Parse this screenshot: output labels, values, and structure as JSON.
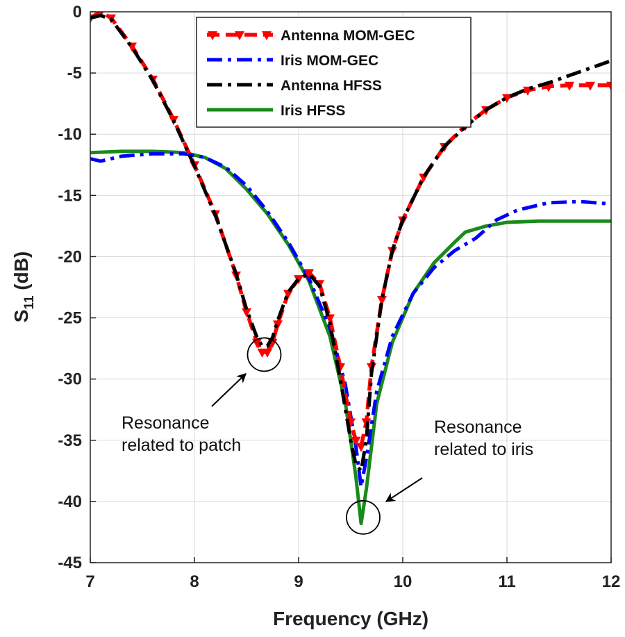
{
  "chart_data": {
    "type": "line",
    "title": "",
    "xlabel": "Frequency (GHz)",
    "ylabel_main": "S",
    "ylabel_sub": "11",
    "ylabel_unit": " (dB)",
    "xlim": [
      7,
      12
    ],
    "ylim": [
      -45,
      0
    ],
    "xticks": [
      "7",
      "8",
      "9",
      "10",
      "11",
      "12"
    ],
    "yticks": [
      "0",
      "-5",
      "-10",
      "-15",
      "-20",
      "-25",
      "-30",
      "-35",
      "-40",
      "-45"
    ],
    "grid": true,
    "legend_position": "top-center",
    "series": [
      {
        "name": "Antenna MOM-GEC",
        "color": "#ff0000",
        "style": "dashed-triangle-markers",
        "x": [
          7.0,
          7.1,
          7.2,
          7.4,
          7.6,
          7.8,
          8.0,
          8.2,
          8.4,
          8.5,
          8.6,
          8.65,
          8.7,
          8.75,
          8.8,
          8.9,
          9.0,
          9.1,
          9.2,
          9.3,
          9.4,
          9.5,
          9.55,
          9.6,
          9.65,
          9.7,
          9.8,
          9.9,
          10.0,
          10.2,
          10.4,
          10.6,
          10.8,
          11.0,
          11.2,
          11.4,
          11.6,
          11.8,
          12.0
        ],
        "y": [
          -0.5,
          0.0,
          -0.5,
          -2.8,
          -5.5,
          -8.8,
          -12.5,
          -16.5,
          -21.5,
          -24.5,
          -27.0,
          -27.8,
          -27.8,
          -27.0,
          -25.5,
          -23.0,
          -21.8,
          -21.3,
          -22.2,
          -25.0,
          -29.0,
          -33.5,
          -35.0,
          -35.5,
          -33.5,
          -29.0,
          -23.5,
          -19.5,
          -17.0,
          -13.5,
          -11.0,
          -9.3,
          -8.0,
          -7.0,
          -6.4,
          -6.1,
          -6.0,
          -6.0,
          -6.0
        ]
      },
      {
        "name": "Iris MOM-GEC",
        "color": "#0000ff",
        "style": "dash-dot",
        "x": [
          7.0,
          7.1,
          7.3,
          7.6,
          7.9,
          8.1,
          8.3,
          8.5,
          8.7,
          8.9,
          9.1,
          9.3,
          9.45,
          9.55,
          9.6,
          9.65,
          9.75,
          9.9,
          10.1,
          10.3,
          10.5,
          10.7,
          10.9,
          11.1,
          11.4,
          11.7,
          12.0
        ],
        "y": [
          -12.0,
          -12.2,
          -11.8,
          -11.6,
          -11.6,
          -11.9,
          -12.7,
          -14.2,
          -16.3,
          -18.8,
          -21.8,
          -25.8,
          -30.5,
          -35.5,
          -38.8,
          -36.5,
          -31.0,
          -26.5,
          -23.0,
          -20.9,
          -19.5,
          -18.5,
          -17.0,
          -16.2,
          -15.6,
          -15.5,
          -15.7
        ]
      },
      {
        "name": "Antenna HFSS",
        "color": "#000000",
        "style": "dash-dot",
        "x": [
          7.0,
          7.1,
          7.2,
          7.4,
          7.6,
          7.8,
          8.0,
          8.2,
          8.4,
          8.5,
          8.6,
          8.65,
          8.7,
          8.75,
          8.8,
          8.9,
          9.0,
          9.1,
          9.2,
          9.3,
          9.4,
          9.5,
          9.55,
          9.6,
          9.65,
          9.7,
          9.8,
          9.9,
          10.0,
          10.2,
          10.4,
          10.6,
          10.8,
          11.0,
          11.2,
          11.4,
          11.6,
          11.8,
          12.0
        ],
        "y": [
          -0.5,
          -0.3,
          -0.6,
          -2.9,
          -5.6,
          -8.9,
          -12.6,
          -16.6,
          -21.4,
          -24.3,
          -26.6,
          -27.3,
          -27.3,
          -26.6,
          -25.2,
          -22.9,
          -21.8,
          -21.4,
          -22.4,
          -25.4,
          -30.0,
          -35.0,
          -37.0,
          -37.5,
          -35.0,
          -29.5,
          -23.5,
          -19.5,
          -17.0,
          -13.5,
          -11.0,
          -9.4,
          -8.0,
          -7.0,
          -6.3,
          -5.8,
          -5.2,
          -4.6,
          -4.0
        ]
      },
      {
        "name": "Iris HFSS",
        "color": "#1a8a1a",
        "style": "solid",
        "x": [
          7.0,
          7.3,
          7.6,
          7.9,
          8.1,
          8.3,
          8.5,
          8.7,
          8.9,
          9.1,
          9.3,
          9.45,
          9.55,
          9.6,
          9.65,
          9.75,
          9.9,
          10.1,
          10.3,
          10.5,
          10.6,
          10.8,
          11.0,
          11.3,
          11.6,
          12.0
        ],
        "y": [
          -11.5,
          -11.4,
          -11.4,
          -11.5,
          -11.9,
          -12.8,
          -14.5,
          -16.5,
          -19.0,
          -22.0,
          -26.5,
          -32.0,
          -38.0,
          -41.8,
          -39.0,
          -32.0,
          -27.0,
          -23.0,
          -20.5,
          -18.8,
          -18.0,
          -17.5,
          -17.2,
          -17.1,
          -17.1,
          -17.1
        ]
      }
    ],
    "annotations": [
      {
        "lines": [
          "Resonance",
          "related to patch"
        ],
        "target_x": 8.67,
        "target_y": -28.0
      },
      {
        "lines": [
          "Resonance",
          "related to iris"
        ],
        "target_x": 9.62,
        "target_y": -41.3
      }
    ]
  }
}
